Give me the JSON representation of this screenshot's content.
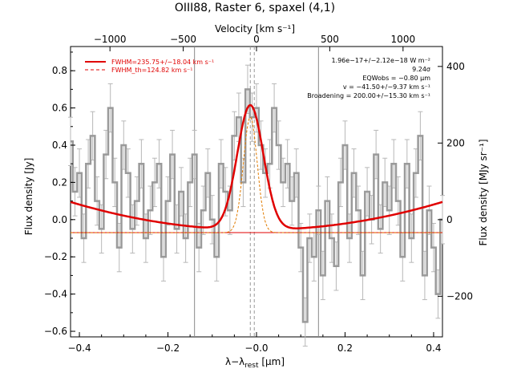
{
  "chart_data": {
    "type": "line",
    "title": "OIII88, Raster 6, spaxel (4,1)",
    "xlabel": "λ−λrest [μm]",
    "xlabel_main": "λ−λ",
    "xlabel_sub": "rest",
    "xlabel_unit": " [μm]",
    "ylabel": "Flux density [Jy]",
    "ylabel_right": "Flux density [MJy sr⁻¹]",
    "xlabel_top": "Velocity [km s⁻¹]",
    "xlim": [
      -0.42,
      0.42
    ],
    "ylim": [
      -0.63,
      0.93
    ],
    "ylim_right": [
      -306,
      452
    ],
    "top_xlim": [
      -1269,
      1269
    ],
    "x_ticks": [
      -0.4,
      -0.2,
      0.0,
      0.2,
      0.4
    ],
    "x_tick_labels": [
      "−0.4",
      "−0.2",
      "−0.0",
      "0.2",
      "0.4"
    ],
    "y_ticks": [
      -0.6,
      -0.4,
      -0.2,
      0.0,
      0.2,
      0.4,
      0.6,
      0.8
    ],
    "y_tick_labels": [
      "−0.6",
      "−0.4",
      "−0.2",
      "0.0",
      "0.2",
      "0.4",
      "0.6",
      "0.8"
    ],
    "y_right_ticks": [
      -200,
      0,
      200,
      400
    ],
    "y_right_tick_labels": [
      "−200",
      "0",
      "200",
      "400"
    ],
    "top_ticks": [
      -1000,
      -500,
      0,
      500,
      1000
    ],
    "top_tick_labels": [
      "−1000",
      "−500",
      "0",
      "500",
      "1000"
    ],
    "legend": [
      {
        "label": "FWHM=235.75+/−18.04 km s⁻¹",
        "color": "#e00000",
        "style": "solid"
      },
      {
        "label": "FWHM_th=124.82 km s⁻¹",
        "color": "#e00000",
        "style": "dashed"
      }
    ],
    "legend_position": "top-left",
    "annotations": [
      "1.96e−17+/−2.12e−18 W m⁻²",
      "9.24σ",
      "EQWobs = −0.80 μm",
      "v = −41.50+/−9.37 km s⁻¹",
      "Broadening = 200.00+/−15.30 km s⁻¹"
    ],
    "annotation_position": "top-right",
    "vertical_lines_x": [
      -0.14,
      0.14
    ],
    "center_line_x": [
      -0.005,
      -0.014
    ],
    "spectrum": {
      "name": "",
      "color": "#9a9a9a",
      "style": "step",
      "x": [
        -0.42,
        -0.41,
        -0.4,
        -0.39,
        -0.38,
        -0.37,
        -0.36,
        -0.35,
        -0.34,
        -0.33,
        -0.32,
        -0.31,
        -0.3,
        -0.29,
        -0.28,
        -0.27,
        -0.26,
        -0.25,
        -0.24,
        -0.23,
        -0.22,
        -0.21,
        -0.2,
        -0.19,
        -0.18,
        -0.17,
        -0.16,
        -0.15,
        -0.14,
        -0.13,
        -0.12,
        -0.11,
        -0.1,
        -0.09,
        -0.08,
        -0.07,
        -0.06,
        -0.05,
        -0.04,
        -0.03,
        -0.02,
        -0.01,
        0.0,
        0.01,
        0.02,
        0.03,
        0.04,
        0.05,
        0.06,
        0.07,
        0.08,
        0.09,
        0.1,
        0.11,
        0.12,
        0.13,
        0.14,
        0.15,
        0.16,
        0.17,
        0.18,
        0.19,
        0.2,
        0.21,
        0.22,
        0.23,
        0.24,
        0.25,
        0.26,
        0.27,
        0.28,
        0.29,
        0.3,
        0.31,
        0.32,
        0.33,
        0.34,
        0.35,
        0.36,
        0.37,
        0.38,
        0.39,
        0.4,
        0.41,
        0.42
      ],
      "y": [
        0.42,
        0.15,
        0.25,
        -0.1,
        0.3,
        0.45,
        0.1,
        -0.05,
        0.35,
        0.6,
        0.2,
        -0.15,
        0.4,
        0.25,
        -0.05,
        0.1,
        0.3,
        -0.1,
        0.05,
        0.2,
        0.3,
        -0.2,
        0.1,
        0.35,
        -0.05,
        0.15,
        -0.1,
        0.2,
        0.35,
        -0.15,
        0.05,
        0.25,
        0.0,
        -0.2,
        0.3,
        0.15,
        0.05,
        0.45,
        0.55,
        0.2,
        0.7,
        0.55,
        0.6,
        0.4,
        0.25,
        0.3,
        0.6,
        0.4,
        0.2,
        0.3,
        0.1,
        0.25,
        -0.15,
        -0.55,
        -0.1,
        -0.2,
        0.05,
        -0.3,
        0.1,
        -0.1,
        -0.25,
        0.2,
        0.4,
        -0.1,
        0.25,
        0.05,
        -0.3,
        0.15,
        0.0,
        0.35,
        -0.05,
        0.2,
        0.05,
        0.3,
        0.1,
        -0.2,
        0.3,
        -0.1,
        0.25,
        0.45,
        -0.3,
        0.05,
        -0.15,
        -0.4,
        0.0
      ],
      "err": [
        0.13,
        0.13,
        0.13,
        0.13,
        0.13,
        0.13,
        0.13,
        0.13,
        0.13,
        0.13,
        0.13,
        0.13,
        0.13,
        0.13,
        0.13,
        0.13,
        0.13,
        0.13,
        0.13,
        0.13,
        0.13,
        0.13,
        0.13,
        0.13,
        0.13,
        0.13,
        0.13,
        0.13,
        0.13,
        0.13,
        0.13,
        0.13,
        0.13,
        0.13,
        0.13,
        0.13,
        0.13,
        0.13,
        0.13,
        0.13,
        0.13,
        0.13,
        0.13,
        0.13,
        0.13,
        0.13,
        0.13,
        0.13,
        0.13,
        0.13,
        0.13,
        0.13,
        0.13,
        0.13,
        0.13,
        0.13,
        0.13,
        0.13,
        0.13,
        0.13,
        0.13,
        0.13,
        0.13,
        0.13,
        0.13,
        0.13,
        0.13,
        0.13,
        0.13,
        0.13,
        0.13,
        0.13,
        0.13,
        0.13,
        0.13,
        0.13,
        0.13,
        0.13,
        0.13,
        0.13,
        0.13,
        0.13,
        0.13,
        0.13,
        0.13
      ]
    },
    "fit": {
      "name": "FWHM=235.75+/−18.04 km s⁻¹",
      "color": "#e00000",
      "center": -0.014,
      "amplitude": 0.67,
      "sigma": 0.0295,
      "continuum_quadratic": {
        "c0": -0.055,
        "c1": 0.0,
        "c2": 0.85
      }
    },
    "thermal": {
      "name": "FWHM_th=124.82 km s⁻¹",
      "color": "#e07b00",
      "center": -0.014,
      "amplitude": 0.62,
      "sigma": 0.0156,
      "baseline": -0.07
    },
    "continuum_flat": {
      "y": -0.07,
      "color": "#e00000"
    }
  }
}
